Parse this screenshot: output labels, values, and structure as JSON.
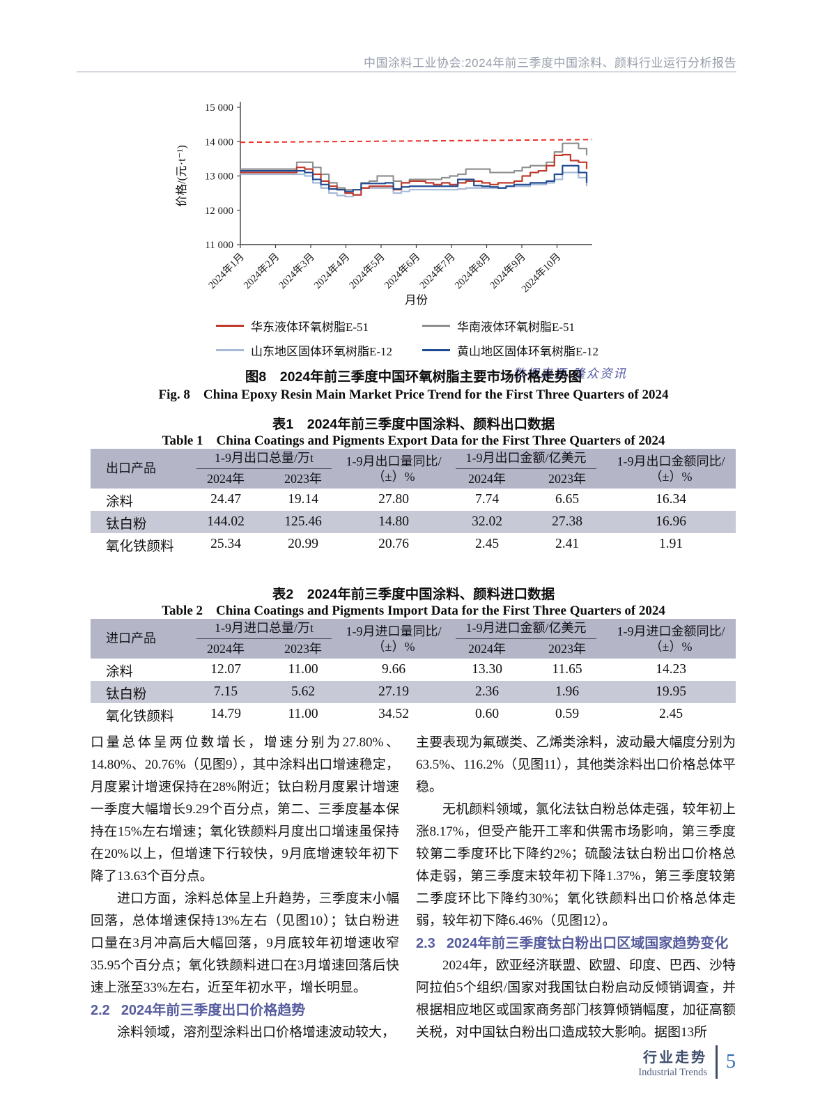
{
  "header": {
    "text": "中国涂料工业协会:2024年前三季度中国涂料、颜料行业运行分析报告"
  },
  "chart_data": {
    "type": "line",
    "xlabel": "月份",
    "ylabel": "价格/(元·t⁻¹)",
    "ylim": [
      11000,
      15000
    ],
    "yticks": [
      11000,
      12000,
      13000,
      14000,
      15000
    ],
    "ytick_labels": [
      "11 000",
      "12 000",
      "13 000",
      "14 000",
      "15 000"
    ],
    "x_tick_labels": [
      "2024年1月",
      "2024年2月",
      "2024年3月",
      "2024年4月",
      "2024年5月",
      "2024年6月",
      "2024年7月",
      "2024年8月",
      "2024年9月",
      "2024年10月"
    ],
    "grid": false,
    "legend_position": "bottom",
    "reference_line": {
      "start": 13980,
      "end": 14060,
      "style": "dashed",
      "color": "#ec2f2a"
    },
    "series": [
      {
        "name": "华东液体环氧树脂E-51",
        "color": "#bf3a2b",
        "values": [
          13100,
          13100,
          13100,
          13100,
          13100,
          13100,
          13100,
          13250,
          13200,
          13050,
          12850,
          12700,
          12600,
          12500,
          12450,
          12650,
          12700,
          12700,
          12700,
          12600,
          12800,
          12850,
          12850,
          12800,
          12750,
          12800,
          12750,
          12800,
          12850,
          12850,
          12800,
          12750,
          12800,
          12800,
          12850,
          13000,
          13100,
          13150,
          13300,
          13600,
          13620,
          13450,
          13400,
          13200
        ]
      },
      {
        "name": "华南液体环氧树脂E-51",
        "color": "#8f9091",
        "values": [
          13200,
          13200,
          13200,
          13200,
          13200,
          13200,
          13200,
          13400,
          13400,
          13250,
          13050,
          12800,
          12650,
          12600,
          12600,
          12800,
          12850,
          13000,
          13000,
          12850,
          12800,
          12900,
          12900,
          12900,
          12900,
          12950,
          13000,
          13050,
          13200,
          13200,
          13200,
          13100,
          13100,
          13100,
          13150,
          13250,
          13300,
          13300,
          13400,
          13700,
          13950,
          13950,
          13800,
          13600
        ]
      },
      {
        "name": "山东地区固体环氧树脂E-12",
        "color": "#a6bad8",
        "values": [
          13050,
          13050,
          13050,
          13050,
          13050,
          13050,
          13050,
          13050,
          13000,
          12800,
          12650,
          12500,
          12430,
          12400,
          12450,
          12650,
          12650,
          12650,
          12650,
          12500,
          12550,
          12600,
          12600,
          12600,
          12600,
          12600,
          12600,
          12620,
          12650,
          12650,
          12650,
          12650,
          12650,
          12700,
          12700,
          12700,
          12750,
          12750,
          12800,
          12900,
          13100,
          13100,
          12950,
          12700
        ]
      },
      {
        "name": "黄山地区固体环氧树脂E-12",
        "color": "#204c92",
        "values": [
          13150,
          13150,
          13150,
          13150,
          13150,
          13150,
          13150,
          13150,
          13100,
          12900,
          12750,
          12620,
          12600,
          12550,
          12600,
          12780,
          12780,
          12780,
          12800,
          12620,
          12680,
          12700,
          12700,
          12700,
          12700,
          12700,
          12700,
          12900,
          12900,
          12720,
          12700,
          12680,
          12650,
          12700,
          12750,
          12750,
          12800,
          12800,
          12850,
          13050,
          13300,
          13300,
          13100,
          12800
        ]
      }
    ],
    "source": "数据来源:隆众资讯"
  },
  "figure8": {
    "caption_zh": "图8　2024年前三季度中国环氧树脂主要市场价格走势图",
    "caption_en": "Fig. 8　China Epoxy Resin Main Market Price Trend for the First Three Quarters of 2024"
  },
  "shared": {
    "year_2024": "2024年",
    "year_2023": "2023年",
    "pm_pct": "（±）%"
  },
  "table1": {
    "caption_zh": "表1　2024年前三季度中国涂料、颜料出口数据",
    "caption_en": "Table 1　China Coatings and Pigments Export Data for the First Three Quarters of 2024",
    "col_product": "出口产品",
    "group_volume": "1-9月出口总量/万t",
    "yoy_volume_l1": "1-9月出口量同比/",
    "group_amount": "1-9月出口金额/亿美元",
    "yoy_amount_l1": "1-9月出口金额同比/",
    "rows": [
      {
        "product": "涂料",
        "values": [
          "24.47",
          "19.14",
          "27.80",
          "7.74",
          "6.65",
          "16.34"
        ]
      },
      {
        "product": "钛白粉",
        "values": [
          "144.02",
          "125.46",
          "14.80",
          "32.02",
          "27.38",
          "16.96"
        ]
      },
      {
        "product": "氧化铁颜料",
        "values": [
          "25.34",
          "20.99",
          "20.76",
          "2.45",
          "2.41",
          "1.91"
        ]
      }
    ]
  },
  "table2": {
    "caption_zh": "表2　2024年前三季度中国涂料、颜料进口数据",
    "caption_en": "Table 2　China Coatings and Pigments Import Data for the First Three Quarters of 2024",
    "col_product": "进口产品",
    "group_volume": "1-9月进口总量/万t",
    "yoy_volume_l1": "1-9月进口量同比/",
    "group_amount": "1-9月进口金额/亿美元",
    "yoy_amount_l1": "1-9月进口金额同比/",
    "rows": [
      {
        "product": "涂料",
        "values": [
          "12.07",
          "11.00",
          "9.66",
          "13.30",
          "11.65",
          "14.23"
        ]
      },
      {
        "product": "钛白粉",
        "values": [
          "7.15",
          "5.62",
          "27.19",
          "2.36",
          "1.96",
          "19.95"
        ]
      },
      {
        "product": "氧化铁颜料",
        "values": [
          "14.79",
          "11.00",
          "34.52",
          "0.60",
          "0.59",
          "2.45"
        ]
      }
    ]
  },
  "body": {
    "left": {
      "p1": "口量总体呈两位数增长，增速分别为27.80%、14.80%、20.76%（见图9），其中涂料出口增速稳定，月度累计增速保持在28%附近；钛白粉月度累计增速一季度大幅增长9.29个百分点，第二、三季度基本保持在15%左右增速；氧化铁颜料月度出口增速虽保持在20%以上，但增速下行较快，9月底增速较年初下降了13.63个百分点。",
      "p2": "进口方面，涂料总体呈上升趋势，三季度末小幅回落，总体增速保持13%左右（见图10）；钛白粉进口量在3月冲高后大幅回落，9月底较年初增速收窄35.95个百分点；氧化铁颜料进口在3月增速回落后快速上涨至33%左右，近至年初水平，增长明显。",
      "h_num": "2.2",
      "h_title": "2024年前三季度出口价格趋势",
      "p3": "涂料领域，溶剂型涂料出口价格增速波动较大，"
    },
    "right": {
      "p1": "主要表现为氟碳类、乙烯类涂料，波动最大幅度分别为63.5%、116.2%（见图11），其他类涂料出口价格总体平稳。",
      "p2": "无机颜料领域，氯化法钛白粉总体走强，较年初上涨8.17%，但受产能开工率和供需市场影响，第三季度较第二季度环比下降约2%；硫酸法钛白粉出口价格总体走弱，第三季度末较年初下降1.37%，第三季度较第二季度环比下降约30%；氧化铁颜料出口价格总体走弱，较年初下降6.46%（见图12）。",
      "h_num": "2.3",
      "h_title": "2024年前三季度钛白粉出口区域国家趋势变化",
      "p3": "2024年，欧亚经济联盟、欧盟、印度、巴西、沙特阿拉伯5个组织/国家对我国钛白粉启动反倾销调查，并根据相应地区或国家商务部门核算倾销幅度，加征高额关税，对中国钛白粉出口造成较大影响。据图13所"
    }
  },
  "footer": {
    "zh": "行业走势",
    "en": "Industrial Trends",
    "page": "5"
  }
}
